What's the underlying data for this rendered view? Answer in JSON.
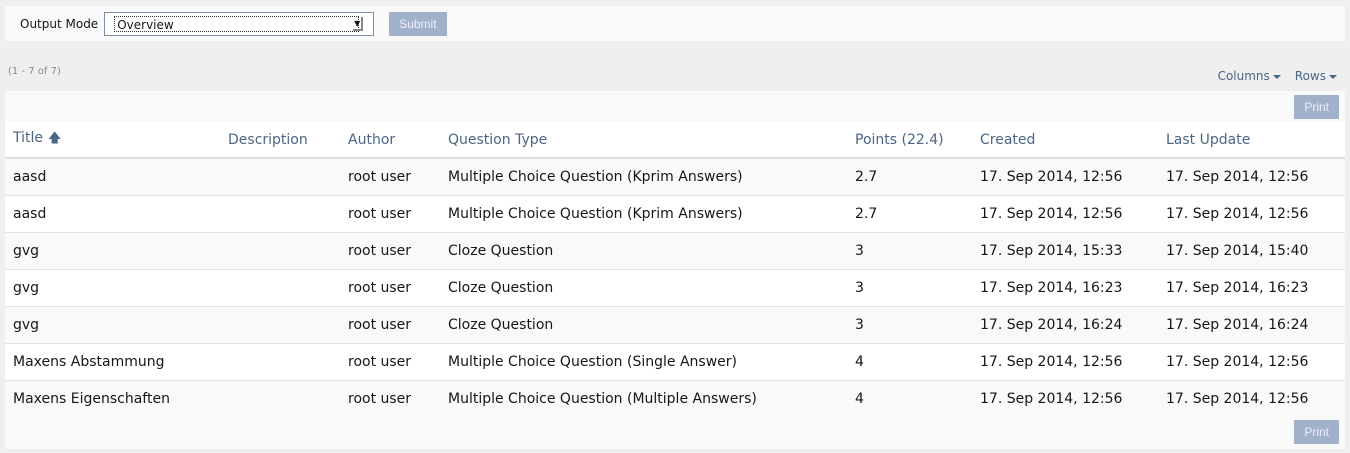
{
  "form": {
    "label": "Output Mode",
    "selected": "Overview",
    "submit": "Submit"
  },
  "count": "(1 - 7 of 7)",
  "controls": {
    "columns": "Columns",
    "rows": "Rows"
  },
  "print": "Print",
  "headers": [
    "Title",
    "Description",
    "Author",
    "Question Type",
    "Points (22.4)",
    "Created",
    "Last Update"
  ],
  "rows": [
    [
      "aasd",
      "",
      "root user",
      "Multiple Choice Question (Kprim Answers)",
      "2.7",
      "17. Sep 2014, 12:56",
      "17. Sep 2014, 12:56"
    ],
    [
      "aasd",
      "",
      "root user",
      "Multiple Choice Question (Kprim Answers)",
      "2.7",
      "17. Sep 2014, 12:56",
      "17. Sep 2014, 12:56"
    ],
    [
      "gvg",
      "",
      "root user",
      "Cloze Question",
      "3",
      "17. Sep 2014, 15:33",
      "17. Sep 2014, 15:40"
    ],
    [
      "gvg",
      "",
      "root user",
      "Cloze Question",
      "3",
      "17. Sep 2014, 16:23",
      "17. Sep 2014, 16:23"
    ],
    [
      "gvg",
      "",
      "root user",
      "Cloze Question",
      "3",
      "17. Sep 2014, 16:24",
      "17. Sep 2014, 16:24"
    ],
    [
      "Maxens Abstammung",
      "",
      "root user",
      "Multiple Choice Question (Single Answer)",
      "4",
      "17. Sep 2014, 12:56",
      "17. Sep 2014, 12:56"
    ],
    [
      "Maxens Eigenschaften",
      "",
      "root user",
      "Multiple Choice Question (Multiple Answers)",
      "4",
      "17. Sep 2014, 12:56",
      "17. Sep 2014, 12:56"
    ]
  ]
}
